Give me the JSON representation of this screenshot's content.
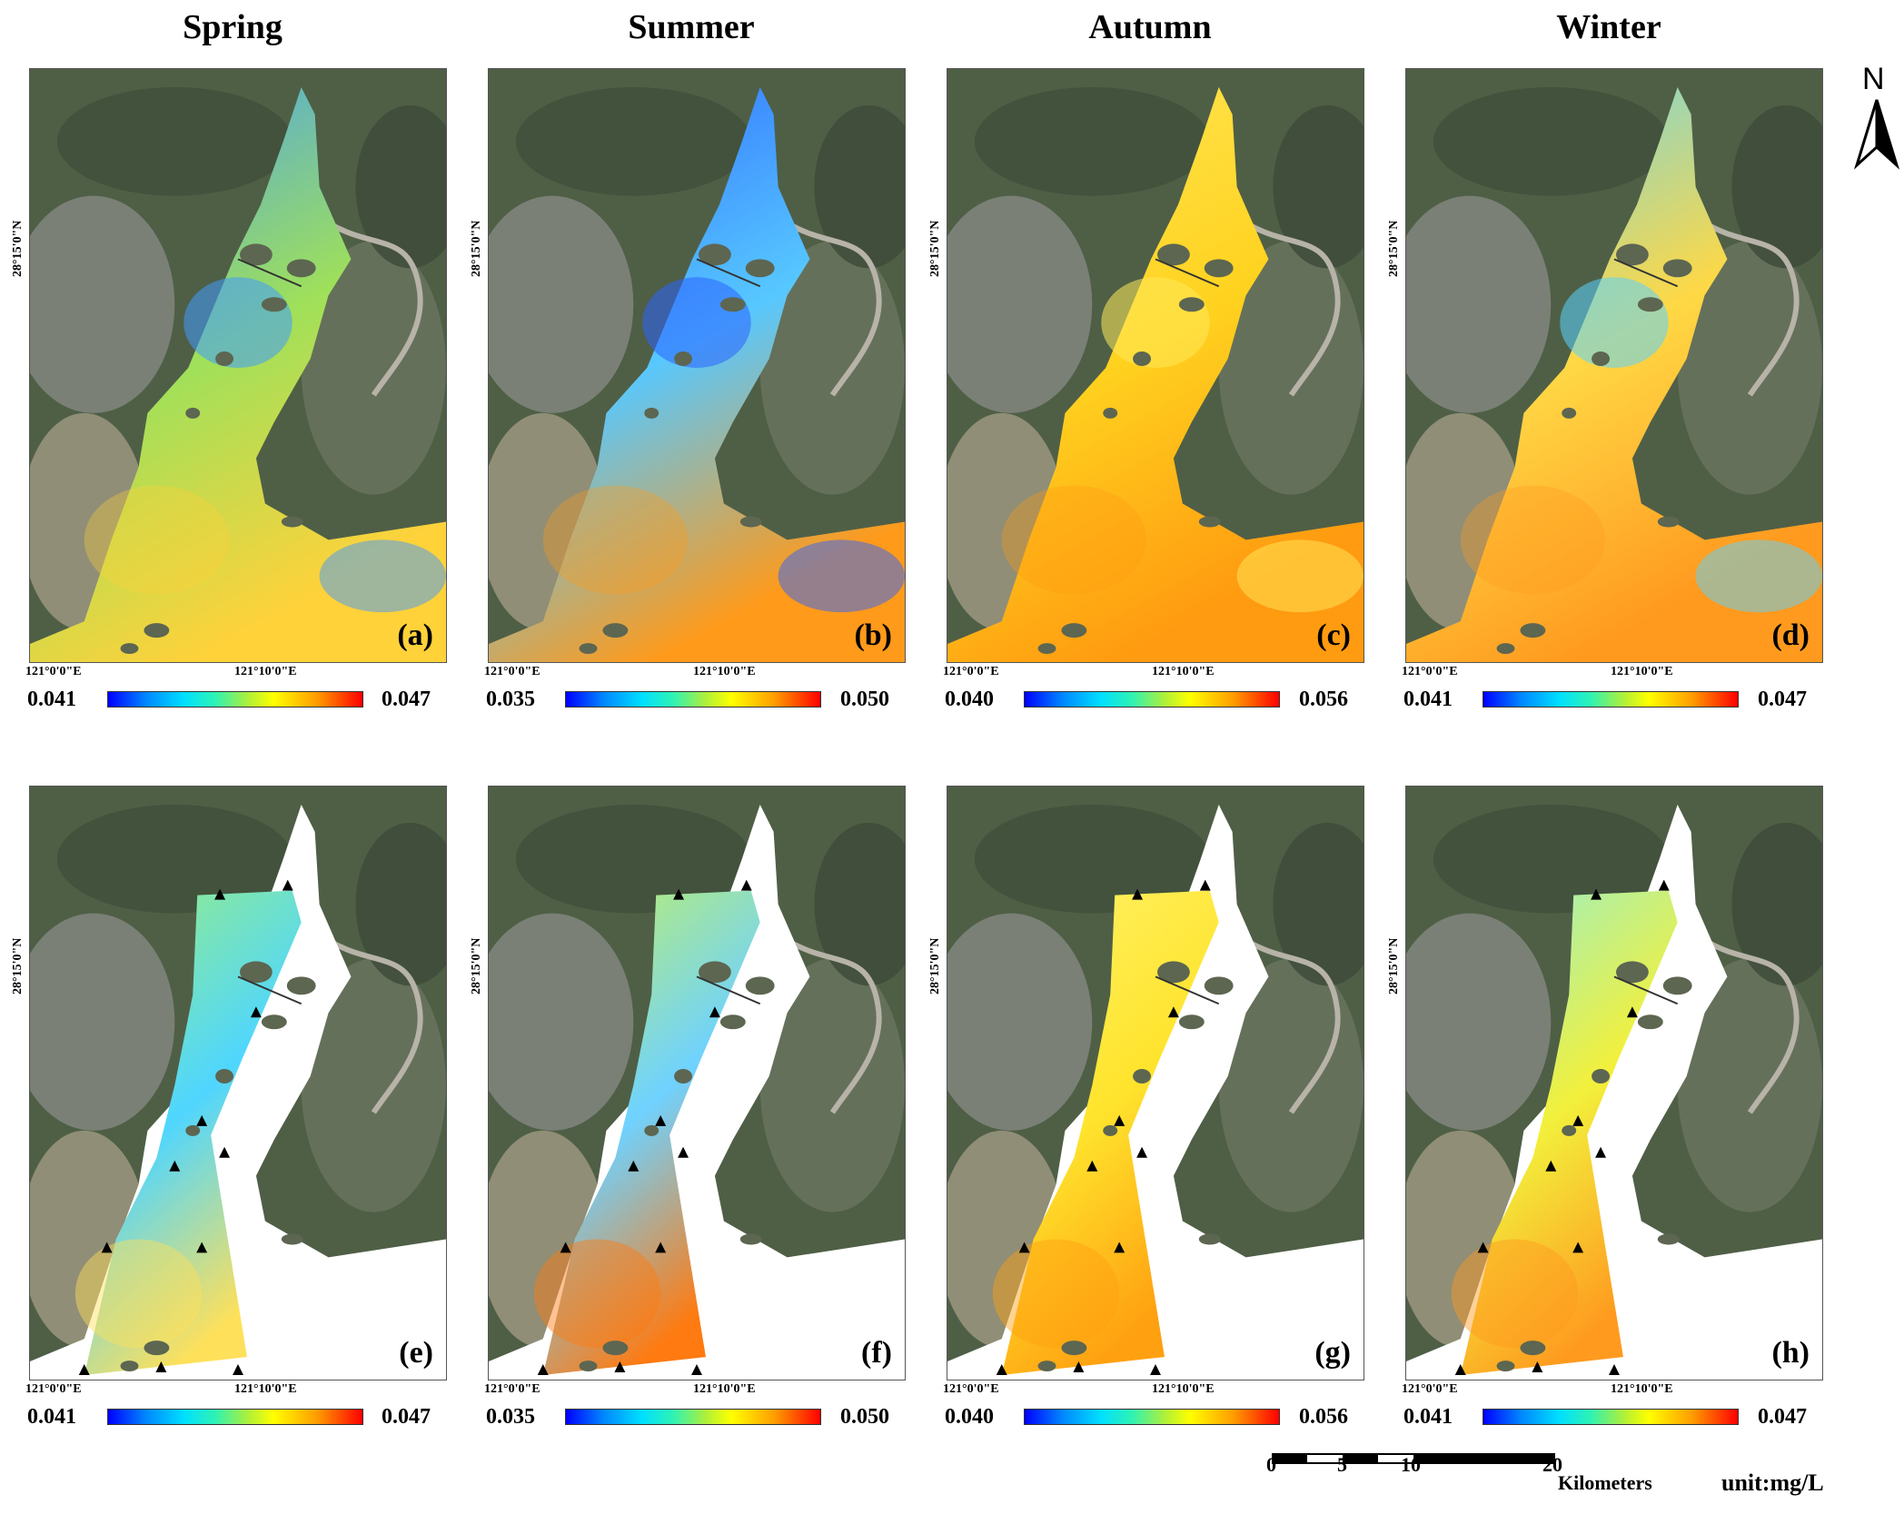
{
  "seasons": [
    "Spring",
    "Summer",
    "Autumn",
    "Winter"
  ],
  "panel_labels": [
    "(a)",
    "(b)",
    "(c)",
    "(d)",
    "(e)",
    "(f)",
    "(g)",
    "(h)"
  ],
  "lat_label": "28°15'0\"N",
  "lon_labels": [
    "121°0'0\"E",
    "121°10'0\"E"
  ],
  "colorbars": [
    {
      "min": "0.041",
      "max": "0.047"
    },
    {
      "min": "0.035",
      "max": "0.050"
    },
    {
      "min": "0.040",
      "max": "0.056"
    },
    {
      "min": "0.041",
      "max": "0.047"
    },
    {
      "min": "0.041",
      "max": "0.047"
    },
    {
      "min": "0.035",
      "max": "0.050"
    },
    {
      "min": "0.040",
      "max": "0.056"
    },
    {
      "min": "0.041",
      "max": "0.047"
    }
  ],
  "panel_colors": [
    {
      "base": "#9fe05a",
      "alt": "#3f9aff",
      "hot": "#ffd23a"
    },
    {
      "base": "#57c8ff",
      "alt": "#2c63ff",
      "hot": "#ff9a1a"
    },
    {
      "base": "#ffd21f",
      "alt": "#ffe95a",
      "hot": "#ff9b10"
    },
    {
      "base": "#ffd845",
      "alt": "#59d4ff",
      "hot": "#ff9a1f"
    },
    {
      "base": "#4fd6ff",
      "alt": "#9ff07a",
      "hot": "#ffe05a"
    },
    {
      "base": "#6fd2ff",
      "alt": "#c8f25a",
      "hot": "#ff7a10"
    },
    {
      "base": "#ffe42d",
      "alt": "#fff36a",
      "hot": "#ffa010"
    },
    {
      "base": "#f2f03c",
      "alt": "#8ff0d8",
      "hot": "#ff9a1f"
    }
  ],
  "north_letter": "N",
  "scale": {
    "ticks": [
      "0",
      "5",
      "10",
      "20"
    ],
    "unit": "Kilometers"
  },
  "unit_label": "unit:mg/L"
}
